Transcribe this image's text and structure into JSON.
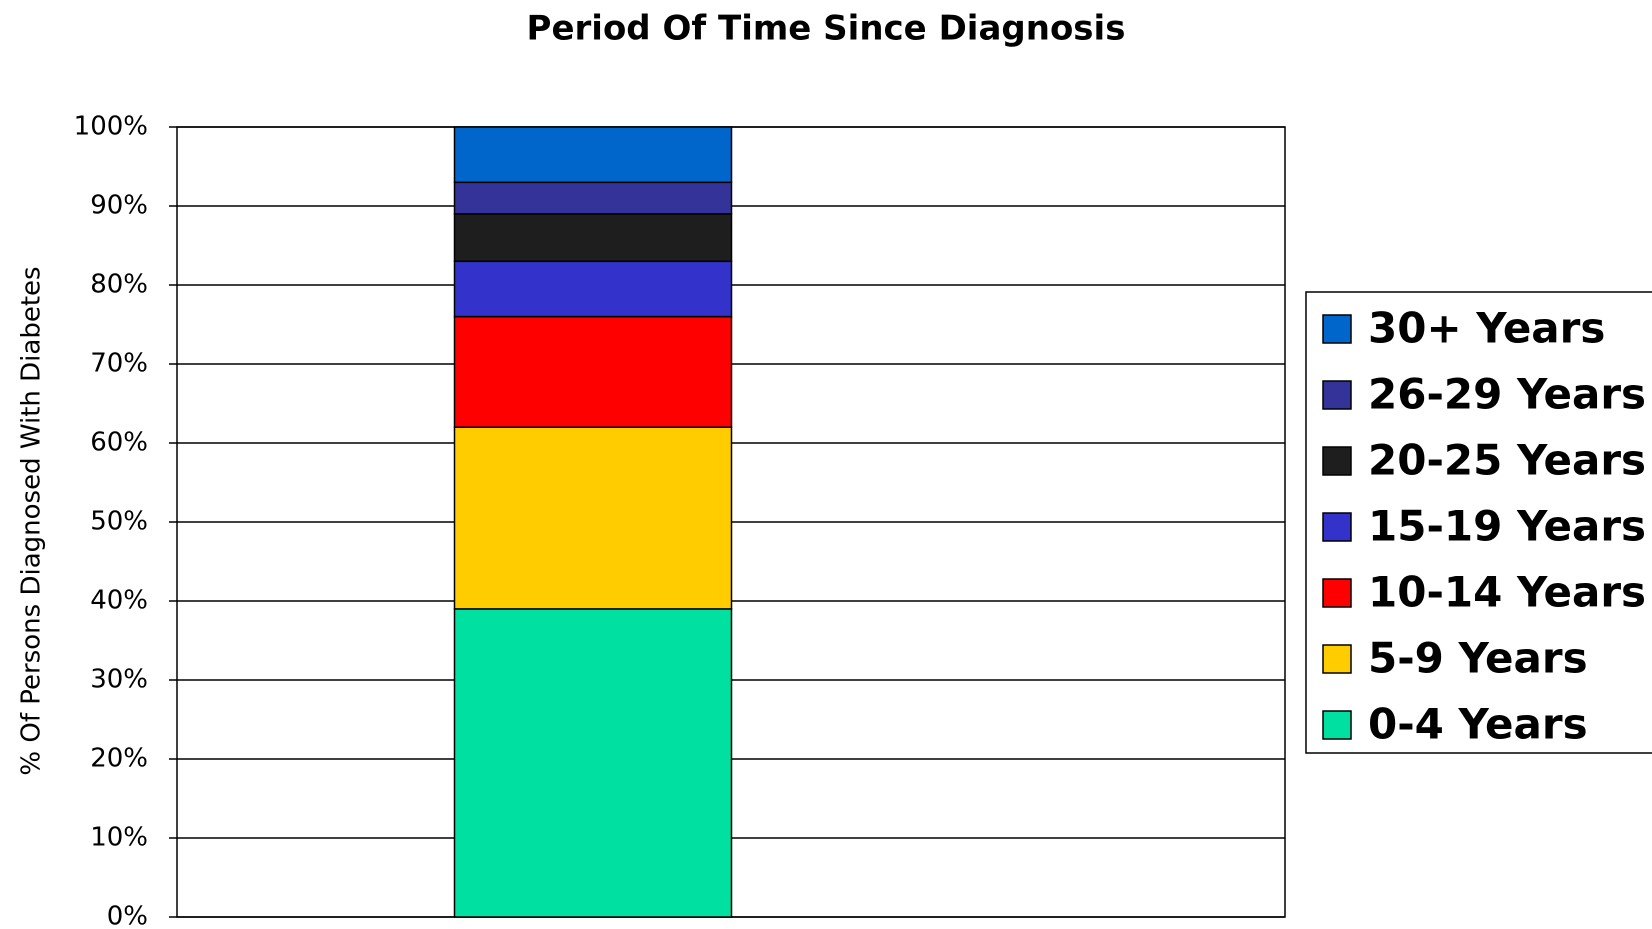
{
  "chart_data": {
    "type": "stacked_bar",
    "title": "Period Of Time Since Diagnosis",
    "y_axis_label": "% Of Persons Diagnosed With Diabetes",
    "categories": [
      null
    ],
    "series": [
      {
        "name": "0-4 Years",
        "color": "#00e0a0",
        "values": [
          39
        ]
      },
      {
        "name": "5-9 Years",
        "color": "#ffcc00",
        "values": [
          23
        ]
      },
      {
        "name": "10-14 Years",
        "color": "#ff0000",
        "values": [
          14
        ]
      },
      {
        "name": "15-19 Years",
        "color": "#3333cc",
        "values": [
          7
        ]
      },
      {
        "name": "20-25 Years",
        "color": "#1e1e1e",
        "values": [
          6
        ]
      },
      {
        "name": "26-29 Years",
        "color": "#333399",
        "values": [
          4
        ]
      },
      {
        "name": "30+ Years",
        "color": "#0066cc",
        "values": [
          7
        ]
      }
    ],
    "ylim": [
      0,
      100
    ],
    "yticks": [
      {
        "value": 0,
        "label": "0%"
      },
      {
        "value": 10,
        "label": "10%"
      },
      {
        "value": 20,
        "label": "20%"
      },
      {
        "value": 30,
        "label": "30%"
      },
      {
        "value": 40,
        "label": "40%"
      },
      {
        "value": 50,
        "label": "50%"
      },
      {
        "value": 60,
        "label": "60%"
      },
      {
        "value": 70,
        "label": "70%"
      },
      {
        "value": 80,
        "label": "80%"
      },
      {
        "value": 90,
        "label": "90%"
      },
      {
        "value": 100,
        "label": "100%"
      }
    ],
    "grid": true,
    "legend": "right"
  }
}
